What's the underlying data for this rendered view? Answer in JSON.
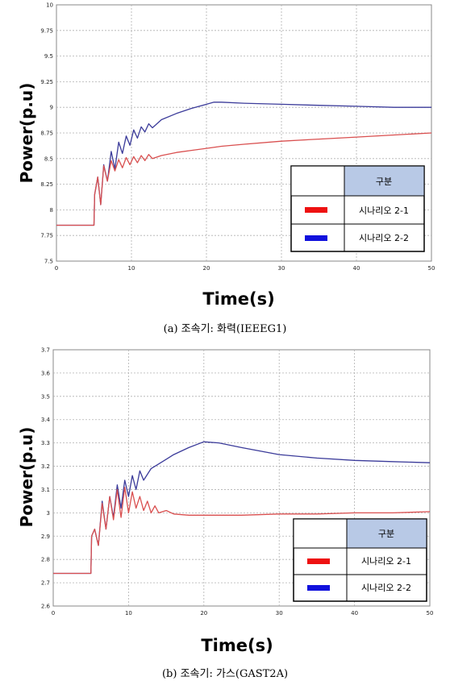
{
  "chart_data": [
    {
      "type": "line",
      "caption": "(a) 조속기: 화력(IEEEG1)",
      "xlabel": "Time(s)",
      "ylabel": "Power(p.u)",
      "xlim": [
        0,
        50
      ],
      "ylim": [
        7.5,
        10
      ],
      "xticks": [
        "0",
        "10",
        "20",
        "30",
        "40",
        "50"
      ],
      "yticks": [
        "7.5",
        "7.75",
        "8",
        "8.25",
        "8.5",
        "8.75",
        "9",
        "9.25",
        "9.5",
        "9.75",
        "10"
      ],
      "grid": true,
      "legend": {
        "position": "bottom-right",
        "header": "구분",
        "entries": [
          {
            "name": "시나리오 2-1",
            "color": "#ee1111"
          },
          {
            "name": "시나리오 2-2",
            "color": "#1111dd"
          }
        ]
      },
      "series": [
        {
          "name": "시나리오 2-1",
          "color": "#d94f4f",
          "x": [
            0,
            5,
            5.1,
            5.5,
            5.9,
            6.3,
            6.8,
            7.3,
            7.8,
            8.3,
            8.8,
            9.3,
            9.8,
            10.3,
            10.8,
            11.3,
            11.8,
            12.3,
            12.8,
            14,
            16,
            18,
            20,
            22,
            25,
            30,
            35,
            40,
            45,
            50
          ],
          "y": [
            7.85,
            7.85,
            8.15,
            8.32,
            8.05,
            8.43,
            8.28,
            8.48,
            8.38,
            8.49,
            8.41,
            8.51,
            8.44,
            8.52,
            8.46,
            8.53,
            8.48,
            8.54,
            8.5,
            8.53,
            8.56,
            8.58,
            8.6,
            8.62,
            8.64,
            8.67,
            8.69,
            8.71,
            8.73,
            8.75
          ]
        },
        {
          "name": "시나리오 2-2",
          "color": "#3b3b9a",
          "x": [
            0,
            5,
            5.1,
            5.5,
            5.9,
            6.3,
            6.8,
            7.3,
            7.8,
            8.3,
            8.8,
            9.3,
            9.8,
            10.3,
            10.8,
            11.3,
            11.8,
            12.3,
            12.8,
            14,
            16,
            18,
            20,
            21,
            22,
            25,
            30,
            35,
            40,
            45,
            50
          ],
          "y": [
            7.85,
            7.85,
            8.15,
            8.32,
            8.05,
            8.44,
            8.28,
            8.57,
            8.4,
            8.66,
            8.55,
            8.72,
            8.63,
            8.78,
            8.7,
            8.81,
            8.76,
            8.84,
            8.8,
            8.88,
            8.94,
            8.99,
            9.03,
            9.05,
            9.05,
            9.04,
            9.03,
            9.02,
            9.01,
            9.0,
            9.0
          ]
        }
      ]
    },
    {
      "type": "line",
      "caption": "(b) 조속기: 가스(GAST2A)",
      "xlabel": "Time(s)",
      "ylabel": "Power(p.u)",
      "xlim": [
        0,
        50
      ],
      "ylim": [
        2.6,
        3.7
      ],
      "xticks": [
        "0",
        "10",
        "20",
        "30",
        "40",
        "50"
      ],
      "yticks": [
        "2.6",
        "2.7",
        "2.8",
        "2.9",
        "3",
        "3.1",
        "3.2",
        "3.3",
        "3.4",
        "3.5",
        "3.6",
        "3.7"
      ],
      "grid": true,
      "legend": {
        "position": "bottom-right",
        "header": "구분",
        "entries": [
          {
            "name": "시나리오 2-1",
            "color": "#ee1111"
          },
          {
            "name": "시나리오 2-2",
            "color": "#1111dd"
          }
        ]
      },
      "series": [
        {
          "name": "시나리오 2-1",
          "color": "#d94f4f",
          "x": [
            0,
            5,
            5.1,
            5.5,
            6.0,
            6.5,
            7.0,
            7.5,
            8.0,
            8.5,
            9.0,
            9.5,
            10.0,
            10.5,
            11.0,
            11.5,
            12.0,
            12.5,
            13.0,
            13.5,
            14.0,
            15,
            16,
            18,
            20,
            25,
            30,
            35,
            40,
            45,
            50
          ],
          "y": [
            2.74,
            2.74,
            2.9,
            2.93,
            2.86,
            3.04,
            2.93,
            3.07,
            2.97,
            3.1,
            2.98,
            3.11,
            3.0,
            3.09,
            3.02,
            3.07,
            3.01,
            3.05,
            3.0,
            3.03,
            3.0,
            3.01,
            2.995,
            2.99,
            2.99,
            2.99,
            2.995,
            2.995,
            3.0,
            3.0,
            3.005
          ]
        },
        {
          "name": "시나리오 2-2",
          "color": "#3b3b9a",
          "x": [
            0,
            5,
            5.1,
            5.5,
            6.0,
            6.5,
            7.0,
            7.5,
            8.0,
            8.5,
            9.0,
            9.5,
            10.0,
            10.5,
            11.0,
            11.5,
            12.0,
            13,
            14,
            15,
            16,
            18,
            20,
            22,
            25,
            30,
            35,
            40,
            45,
            50
          ],
          "y": [
            2.74,
            2.74,
            2.9,
            2.93,
            2.86,
            3.05,
            2.93,
            3.07,
            2.98,
            3.12,
            3.02,
            3.14,
            3.07,
            3.16,
            3.1,
            3.18,
            3.14,
            3.19,
            3.21,
            3.23,
            3.25,
            3.28,
            3.305,
            3.3,
            3.28,
            3.25,
            3.235,
            3.225,
            3.22,
            3.215
          ]
        }
      ]
    }
  ]
}
